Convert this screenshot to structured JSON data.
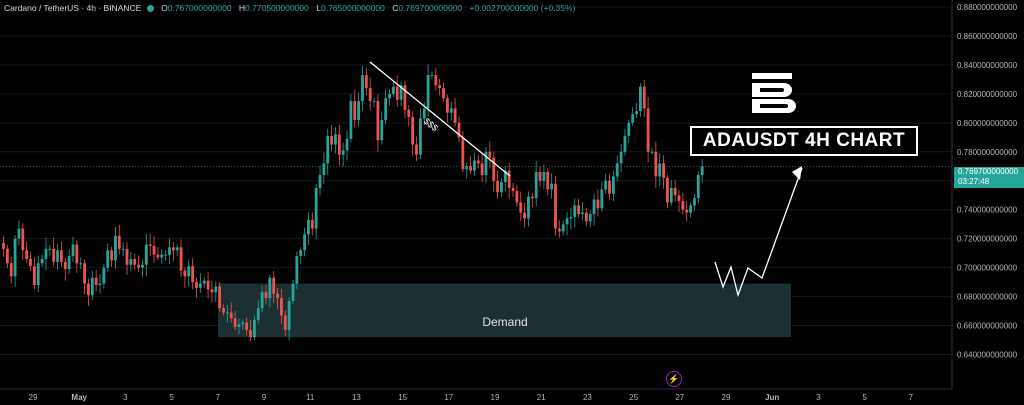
{
  "header": {
    "symbol": "Cardano / TetherUS · 4h · BINANCE",
    "open_label": "O",
    "open": "0.767000000000",
    "high_label": "H",
    "high": "0.770500000000",
    "low_label": "L",
    "low": "0.765000000000",
    "close_label": "C",
    "close": "0.769700000000",
    "change": "+0.002700000000 (+0.35%)"
  },
  "title": "ADAUSDT 4H CHART",
  "demand_label": "Demand",
  "liquidity_label": "$$$",
  "price_badge": {
    "price": "0.769700000000",
    "countdown": "03:27:48"
  },
  "colors": {
    "up": "#26a69a",
    "down": "#ef5350",
    "background": "#000000",
    "zone": "#1e3336"
  },
  "chart_data": {
    "type": "candlestick",
    "title": "ADAUSDT 4H CHART",
    "ylim": [
      0.63,
      0.88
    ],
    "y_ticks": [
      "0.880000000000",
      "0.860000000000",
      "0.840000000000",
      "0.820000000000",
      "0.800000000000",
      "0.780000000000",
      "0.760000000000",
      "0.740000000000",
      "0.720000000000",
      "0.700000000000",
      "0.680000000000",
      "0.660000000000",
      "0.640000000000"
    ],
    "x_ticks": [
      "29",
      "May",
      "3",
      "5",
      "7",
      "9",
      "11",
      "13",
      "15",
      "17",
      "19",
      "21",
      "23",
      "25",
      "27",
      "29",
      "Jun",
      "3",
      "5",
      "7"
    ],
    "last_price": 0.7697,
    "demand_zone": [
      0.652,
      0.689
    ],
    "closes": [
      0.713,
      0.703,
      0.694,
      0.72,
      0.727,
      0.712,
      0.706,
      0.701,
      0.688,
      0.703,
      0.706,
      0.713,
      0.713,
      0.704,
      0.712,
      0.704,
      0.699,
      0.708,
      0.716,
      0.703,
      0.703,
      0.689,
      0.681,
      0.693,
      0.688,
      0.689,
      0.7,
      0.712,
      0.705,
      0.722,
      0.713,
      0.713,
      0.702,
      0.706,
      0.702,
      0.7,
      0.702,
      0.716,
      0.715,
      0.709,
      0.707,
      0.709,
      0.709,
      0.714,
      0.712,
      0.714,
      0.698,
      0.694,
      0.701,
      0.69,
      0.686,
      0.689,
      0.691,
      0.685,
      0.683,
      0.687,
      0.672,
      0.669,
      0.669,
      0.665,
      0.659,
      0.661,
      0.662,
      0.657,
      0.652,
      0.664,
      0.672,
      0.683,
      0.679,
      0.693,
      0.682,
      0.679,
      0.667,
      0.657,
      0.677,
      0.689,
      0.708,
      0.712,
      0.723,
      0.733,
      0.727,
      0.755,
      0.764,
      0.772,
      0.791,
      0.785,
      0.792,
      0.778,
      0.781,
      0.789,
      0.815,
      0.802,
      0.815,
      0.833,
      0.824,
      0.815,
      0.815,
      0.788,
      0.802,
      0.817,
      0.82,
      0.825,
      0.816,
      0.826,
      0.809,
      0.804,
      0.785,
      0.778,
      0.803,
      0.81,
      0.833,
      0.833,
      0.826,
      0.824,
      0.817,
      0.807,
      0.81,
      0.8,
      0.79,
      0.768,
      0.77,
      0.767,
      0.774,
      0.772,
      0.764,
      0.78,
      0.776,
      0.76,
      0.752,
      0.759,
      0.767,
      0.755,
      0.753,
      0.745,
      0.738,
      0.734,
      0.749,
      0.748,
      0.766,
      0.76,
      0.766,
      0.754,
      0.758,
      0.727,
      0.725,
      0.73,
      0.734,
      0.735,
      0.743,
      0.737,
      0.738,
      0.732,
      0.737,
      0.747,
      0.741,
      0.754,
      0.76,
      0.751,
      0.763,
      0.772,
      0.78,
      0.791,
      0.8,
      0.806,
      0.808,
      0.825,
      0.81,
      0.78,
      0.78,
      0.763,
      0.772,
      0.762,
      0.745,
      0.755,
      0.75,
      0.746,
      0.74,
      0.738,
      0.743,
      0.748,
      0.764,
      0.77
    ]
  }
}
